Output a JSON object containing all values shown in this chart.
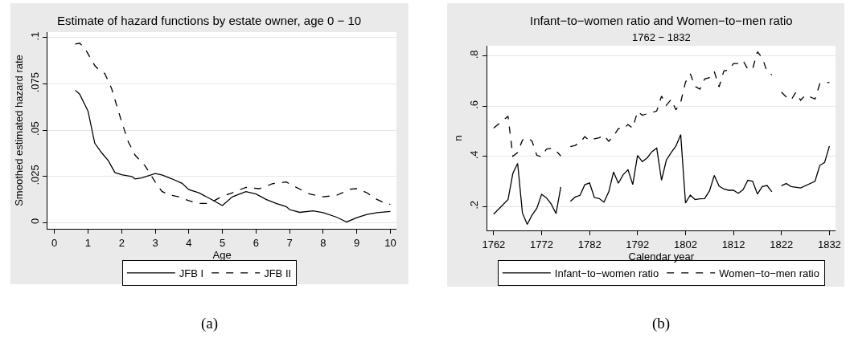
{
  "chart_data": [
    {
      "type": "line",
      "title": "Estimate of hazard functions by estate owner, age 0 − 10",
      "xlabel": "Age",
      "ylabel": "Smoothed estimated hazard rate",
      "xlim": [
        -0.2,
        10.18
      ],
      "ylim": [
        -0.0033,
        0.103
      ],
      "xticks": [
        0,
        1,
        2,
        3,
        4,
        5,
        6,
        7,
        8,
        9,
        10
      ],
      "yticks": [
        0,
        {
          "value": 0.025,
          "label": ".025"
        },
        {
          "value": 0.05,
          "label": ".05"
        },
        {
          "value": 0.075,
          "label": ".075"
        },
        {
          "value": 0.1,
          "label": ".1"
        }
      ],
      "grid": "y",
      "legend": "bottom",
      "annotations": [
        "(a)"
      ],
      "series": [
        {
          "name": "JFB I",
          "color": "#000000",
          "line_style": "solid",
          "x": [
            0.62,
            0.75,
            1.0,
            1.2,
            1.4,
            1.6,
            1.8,
            2.0,
            2.3,
            2.4,
            2.6,
            3.0,
            3.2,
            3.5,
            3.8,
            4.0,
            4.3,
            4.6,
            5.0,
            5.3,
            5.7,
            6.0,
            6.3,
            6.6,
            6.9,
            7.0,
            7.3,
            7.7,
            8.0,
            8.4,
            8.7,
            9.0,
            9.3,
            9.6,
            10.0
          ],
          "values": [
            0.0716,
            0.0695,
            0.0603,
            0.043,
            0.0379,
            0.0336,
            0.0271,
            0.0259,
            0.025,
            0.0237,
            0.0242,
            0.0266,
            0.0258,
            0.0237,
            0.0213,
            0.0179,
            0.0162,
            0.0133,
            0.0093,
            0.014,
            0.0168,
            0.0155,
            0.0126,
            0.0104,
            0.0087,
            0.0071,
            0.0056,
            0.0064,
            0.0054,
            0.003,
            0.0004,
            0.0027,
            0.0045,
            0.0054,
            0.0061
          ]
        },
        {
          "name": "JFB II",
          "color": "#000000",
          "line_style": "dashed",
          "x": [
            0.62,
            0.75,
            0.9,
            1.2,
            1.3,
            1.5,
            1.7,
            2.0,
            2.2,
            2.4,
            2.7,
            3.0,
            3.2,
            3.4,
            3.7,
            4.0,
            4.3,
            4.6,
            5.0,
            5.3,
            5.7,
            6.1,
            6.5,
            6.9,
            7.2,
            7.6,
            8.0,
            8.4,
            8.8,
            9.0,
            9.3,
            9.6,
            9.9,
            10.0
          ],
          "values": [
            0.0965,
            0.097,
            0.0944,
            0.085,
            0.083,
            0.0806,
            0.0726,
            0.0546,
            0.0437,
            0.0365,
            0.0307,
            0.022,
            0.0169,
            0.0152,
            0.014,
            0.0119,
            0.0104,
            0.0104,
            0.0143,
            0.0162,
            0.0191,
            0.0184,
            0.0211,
            0.022,
            0.0191,
            0.0155,
            0.014,
            0.0148,
            0.0181,
            0.0184,
            0.0162,
            0.0126,
            0.01,
            0.01
          ]
        }
      ]
    },
    {
      "type": "line",
      "title": "Infant−to−women ratio and Women−to−men ratio",
      "subtitle": "1762 − 1832",
      "xlabel": "Calendar year",
      "ylabel": "n",
      "xlim": [
        1760.6,
        1833.3
      ],
      "ylim": [
        0.105,
        0.841
      ],
      "xticks": [
        1762,
        1772,
        1782,
        1792,
        1802,
        1812,
        1822,
        1832
      ],
      "yticks": [
        {
          "value": 0.2,
          "label": ".2"
        },
        {
          "value": 0.4,
          "label": ".4"
        },
        {
          "value": 0.6,
          "label": ".6"
        },
        {
          "value": 0.8,
          "label": ".8"
        }
      ],
      "grid": "y",
      "legend": "bottom",
      "annotations": [
        "(b)"
      ],
      "series": [
        {
          "name": "Infant−to−women ratio",
          "color": "#000000",
          "line_style": "solid",
          "x": [
            1762,
            1765,
            1766,
            1767,
            1768,
            1769,
            1770,
            1771,
            1772,
            1773,
            1774,
            1775,
            1776,
            1777,
            1778,
            1779,
            1780,
            1781,
            1782,
            1783,
            1784,
            1785,
            1786,
            1787,
            1788,
            1789,
            1790,
            1791,
            1792,
            1793,
            1794,
            1795,
            1796,
            1797,
            1798,
            1799,
            1800,
            1801,
            1802,
            1803,
            1804,
            1805,
            1806,
            1807,
            1808,
            1809,
            1810,
            1811,
            1812,
            1813,
            1814,
            1815,
            1816,
            1817,
            1818,
            1819,
            1820,
            1821,
            1822,
            1823,
            1824,
            1826,
            1829,
            1830,
            1831,
            1832
          ],
          "values": [
            0.17,
            0.228,
            0.332,
            0.372,
            0.174,
            0.129,
            0.166,
            0.193,
            0.249,
            0.235,
            0.21,
            0.172,
            0.278,
            null,
            0.221,
            0.238,
            0.245,
            0.287,
            0.294,
            0.236,
            0.232,
            0.218,
            0.259,
            0.338,
            0.293,
            0.327,
            0.347,
            0.288,
            0.404,
            0.379,
            0.394,
            0.419,
            0.433,
            0.305,
            0.385,
            0.415,
            0.441,
            0.487,
            0.214,
            0.246,
            0.228,
            0.231,
            0.232,
            0.263,
            0.324,
            0.282,
            0.27,
            0.265,
            0.265,
            0.253,
            0.267,
            0.305,
            0.301,
            0.25,
            0.28,
            0.284,
            0.259,
            null,
            0.283,
            0.292,
            0.28,
            0.274,
            0.301,
            0.364,
            0.376,
            0.441
          ]
        },
        {
          "name": "Women−to−men ratio",
          "color": "#000000",
          "line_style": "dashed",
          "x": [
            1762,
            1765,
            1766,
            1767,
            1768,
            1769,
            1770,
            1771,
            1772,
            1773,
            1774,
            1775,
            1776,
            1777,
            1778,
            1779,
            1780,
            1781,
            1782,
            1783,
            1784,
            1785,
            1786,
            1787,
            1788,
            1789,
            1790,
            1791,
            1792,
            1793,
            1794,
            1795,
            1796,
            1797,
            1798,
            1799,
            1800,
            1801,
            1802,
            1803,
            1804,
            1805,
            1806,
            1807,
            1808,
            1809,
            1810,
            1811,
            1812,
            1813,
            1814,
            1815,
            1816,
            1817,
            1818,
            1819,
            1820,
            1821,
            1822,
            1823,
            1824,
            1825,
            1826,
            1827,
            1828,
            1829,
            1830,
            1831,
            1832
          ],
          "values": [
            0.513,
            0.56,
            0.401,
            0.415,
            0.465,
            0.474,
            0.461,
            0.404,
            0.399,
            0.429,
            0.433,
            0.422,
            0.402,
            null,
            0.439,
            0.444,
            0.455,
            0.479,
            0.463,
            0.47,
            0.474,
            0.484,
            0.46,
            0.481,
            0.511,
            0.509,
            0.527,
            0.513,
            0.579,
            0.564,
            0.57,
            0.575,
            0.581,
            0.64,
            0.604,
            0.627,
            0.586,
            0.616,
            0.696,
            0.729,
            0.679,
            0.668,
            0.709,
            0.714,
            0.738,
            0.677,
            0.741,
            0.744,
            0.77,
            0.77,
            0.782,
            0.747,
            0.749,
            0.817,
            0.793,
            0.738,
            0.725,
            null,
            0.656,
            0.637,
            0.624,
            0.656,
            0.624,
            0.645,
            0.637,
            0.629,
            0.69,
            0.691,
            0.695
          ]
        }
      ]
    }
  ]
}
